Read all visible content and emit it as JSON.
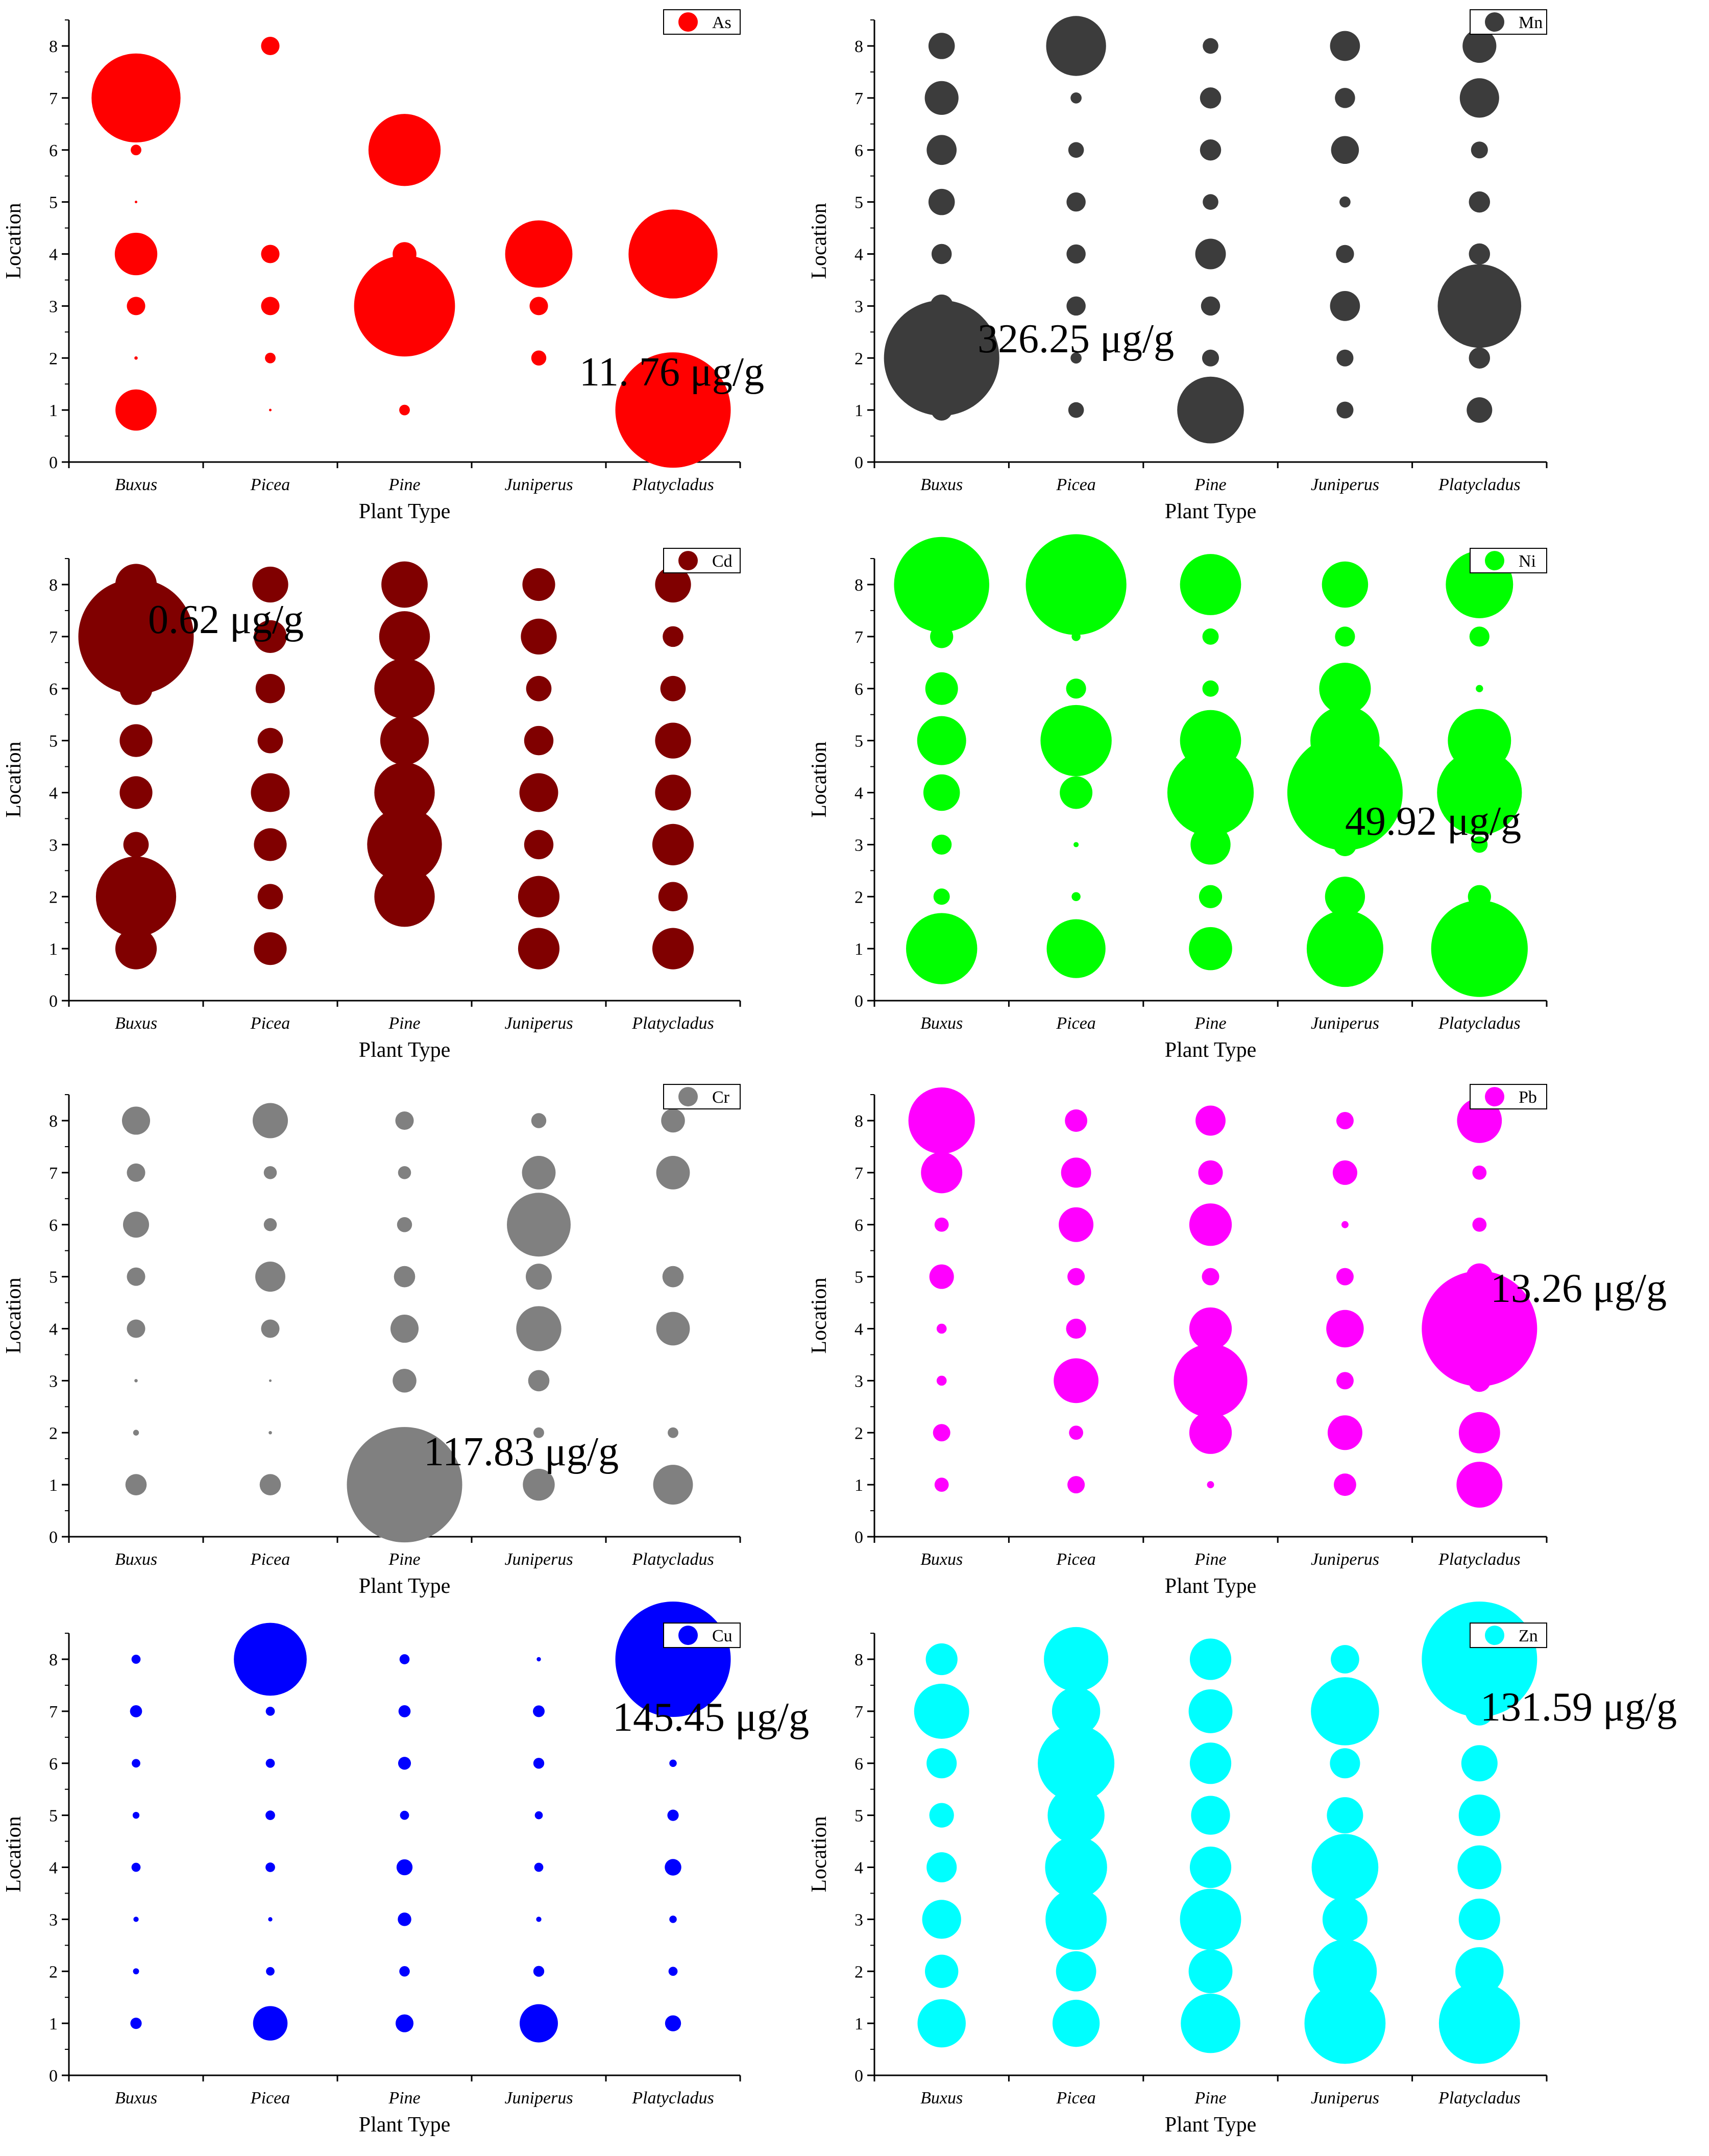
{
  "figure": {
    "xlabel": "Plant Type",
    "ylabel": "Location",
    "categories": [
      "Buxus",
      "Picea",
      "Pine",
      "Juniperus",
      "Platycladus"
    ],
    "yticks": [
      "0",
      "1",
      "2",
      "3",
      "4",
      "5",
      "6",
      "7",
      "8"
    ]
  },
  "chart_data": [
    {
      "type": "scatter",
      "subtype": "bubble",
      "element": "As",
      "color": "#ff0000",
      "annotation": "11. 76 μg/g",
      "max_value": 11.76,
      "ylim": [
        0,
        8.5
      ],
      "xlabel": "Plant Type",
      "ylabel": "Location",
      "categories": [
        "Buxus",
        "Picea",
        "Pine",
        "Juniperus",
        "Platycladus"
      ],
      "sizes": [
        [
          1.5,
          0.01,
          0.3,
          1.6,
          0.005,
          0.1,
          7.0,
          0
        ],
        [
          0.005,
          0.1,
          0.3,
          0.3,
          0,
          0,
          0,
          0.3
        ],
        [
          0.1,
          0,
          9.0,
          0.5,
          0,
          4.6,
          0,
          0
        ],
        [
          0,
          0.2,
          0.3,
          4.0,
          0,
          0,
          0,
          0
        ],
        [
          11.76,
          0,
          0,
          7.0,
          0,
          0,
          0,
          0
        ]
      ]
    },
    {
      "type": "scatter",
      "subtype": "bubble",
      "element": "Mn",
      "color": "#3c3c3c",
      "annotation": "326.25 μg/g",
      "max_value": 326.25,
      "ylim": [
        0,
        8.5
      ],
      "xlabel": "Plant Type",
      "ylabel": "Location",
      "categories": [
        "Buxus",
        "Picea",
        "Pine",
        "Juniperus",
        "Platycladus"
      ],
      "sizes": [
        [
          11,
          326.25,
          13,
          10,
          17,
          22,
          28,
          17
        ],
        [
          6,
          3,
          9,
          9,
          9,
          6,
          3,
          88
        ],
        [
          109,
          7,
          9,
          23,
          6,
          11,
          11,
          6
        ],
        [
          7,
          7,
          22,
          8,
          3,
          19,
          10,
          22
        ],
        [
          16,
          11,
          171,
          11,
          11,
          7,
          38,
          28
        ]
      ]
    },
    {
      "type": "scatter",
      "subtype": "bubble",
      "element": "Cd",
      "color": "#800000",
      "annotation": "0.62 μg/g",
      "max_value": 0.62,
      "ylim": [
        0,
        8.5
      ],
      "xlabel": "Plant Type",
      "ylabel": "Location",
      "categories": [
        "Buxus",
        "Picea",
        "Pine",
        "Juniperus",
        "Platycladus"
      ],
      "sizes": [
        [
          0.08,
          0.3,
          0.03,
          0.05,
          0.05,
          0.05,
          0.62,
          0.08
        ],
        [
          0.05,
          0.03,
          0.05,
          0.07,
          0.03,
          0.04,
          0.05,
          0.06
        ],
        [
          0,
          0.17,
          0.26,
          0.17,
          0.11,
          0.17,
          0.12,
          0.1
        ],
        [
          0.08,
          0.08,
          0.04,
          0.07,
          0.04,
          0.03,
          0.06,
          0.05
        ],
        [
          0.08,
          0.04,
          0.08,
          0.06,
          0.06,
          0.03,
          0.02,
          0.06
        ]
      ]
    },
    {
      "type": "scatter",
      "subtype": "bubble",
      "element": "Ni",
      "color": "#00ff00",
      "annotation": "49.92 μg/g",
      "max_value": 49.92,
      "ylim": [
        0,
        8.5
      ],
      "xlabel": "Plant Type",
      "ylabel": "Location",
      "categories": [
        "Buxus",
        "Picea",
        "Pine",
        "Juniperus",
        "Platycladus"
      ],
      "sizes": [
        [
          19,
          1,
          1.5,
          5,
          9,
          4,
          2,
          34
        ],
        [
          13,
          0.3,
          0.1,
          4,
          19,
          1.5,
          0.3,
          38
        ],
        [
          7,
          2,
          6,
          28,
          14,
          1,
          1,
          14
        ],
        [
          22,
          6,
          2,
          49.92,
          18,
          10,
          1.5,
          8
        ],
        [
          35,
          2,
          1,
          27,
          15,
          0.2,
          1.5,
          17
        ]
      ]
    },
    {
      "type": "scatter",
      "subtype": "bubble",
      "element": "Cr",
      "color": "#808080",
      "annotation": "117.83 μg/g",
      "max_value": 117.83,
      "ylim": [
        0,
        8.5
      ],
      "xlabel": "Plant Type",
      "ylabel": "Location",
      "categories": [
        "Buxus",
        "Picea",
        "Pine",
        "Juniperus",
        "Platycladus"
      ],
      "sizes": [
        [
          4,
          0.3,
          0.1,
          3,
          3,
          6,
          3,
          7
        ],
        [
          4,
          0.1,
          0.01,
          3,
          8,
          1.5,
          1.5,
          11
        ],
        [
          117.83,
          1,
          5,
          7,
          4,
          2,
          1.5,
          3
        ],
        [
          9,
          1,
          4,
          18,
          6,
          36,
          10,
          2
        ],
        [
          14,
          1,
          0,
          10,
          4,
          0,
          10,
          5
        ]
      ]
    },
    {
      "type": "scatter",
      "subtype": "bubble",
      "element": "Pb",
      "color": "#ff00ff",
      "annotation": "13.26 μg/g",
      "max_value": 13.26,
      "ylim": [
        0,
        8.5
      ],
      "xlabel": "Plant Type",
      "ylabel": "Location",
      "categories": [
        "Buxus",
        "Picea",
        "Pine",
        "Juniperus",
        "Platycladus"
      ],
      "sizes": [
        [
          0.2,
          0.3,
          0.1,
          0.1,
          0.6,
          0.2,
          1.7,
          4.4
        ],
        [
          0.3,
          0.2,
          2.0,
          0.4,
          0.3,
          1.2,
          0.9,
          0.5
        ],
        [
          0.05,
          1.8,
          5.4,
          1.8,
          0.3,
          1.8,
          0.6,
          0.9
        ],
        [
          0.5,
          1.2,
          0.3,
          1.4,
          0.3,
          0.05,
          0.6,
          0.3
        ],
        [
          2.1,
          1.7,
          0.5,
          13.26,
          0.7,
          0.2,
          0.2,
          2.0
        ]
      ]
    },
    {
      "type": "scatter",
      "subtype": "bubble",
      "element": "Cu",
      "color": "#0000ff",
      "annotation": "145.45 μg/g",
      "max_value": 145.45,
      "ylim": [
        0,
        8.5
      ],
      "xlabel": "Plant Type",
      "ylabel": "Location",
      "categories": [
        "Buxus",
        "Picea",
        "Pine",
        "Juniperus",
        "Platycladus"
      ],
      "sizes": [
        [
          1.4,
          0.4,
          0.3,
          0.9,
          0.5,
          0.8,
          1.6,
          0.9
        ],
        [
          13,
          0.8,
          0.2,
          1.0,
          1.0,
          0.9,
          0.9,
          58
        ],
        [
          3.5,
          1.2,
          2.0,
          2.8,
          0.9,
          1.8,
          1.6,
          1.1
        ],
        [
          16,
          1.3,
          0.3,
          0.9,
          0.7,
          1.3,
          1.5,
          0.2
        ],
        [
          2.8,
          0.9,
          0.6,
          3.0,
          1.4,
          0.6,
          0,
          145.45
        ]
      ]
    },
    {
      "type": "scatter",
      "subtype": "bubble",
      "element": "Zn",
      "color": "#00ffff",
      "annotation": "131.59 μg/g",
      "max_value": 131.59,
      "ylim": [
        0,
        8.5
      ],
      "xlabel": "Plant Type",
      "ylabel": "Location",
      "categories": [
        "Buxus",
        "Picea",
        "Pine",
        "Juniperus",
        "Platycladus"
      ],
      "sizes": [
        [
          23,
          11,
          15,
          9,
          6,
          9,
          30,
          10
        ],
        [
          22,
          16,
          37,
          38,
          32,
          58,
          23,
          41
        ],
        [
          35,
          19,
          37,
          17,
          15,
          17,
          19,
          17
        ],
        [
          65,
          40,
          20,
          44,
          13,
          9,
          46,
          8
        ],
        [
          65,
          23,
          17,
          19,
          17,
          13,
          8,
          131.59
        ]
      ]
    }
  ]
}
